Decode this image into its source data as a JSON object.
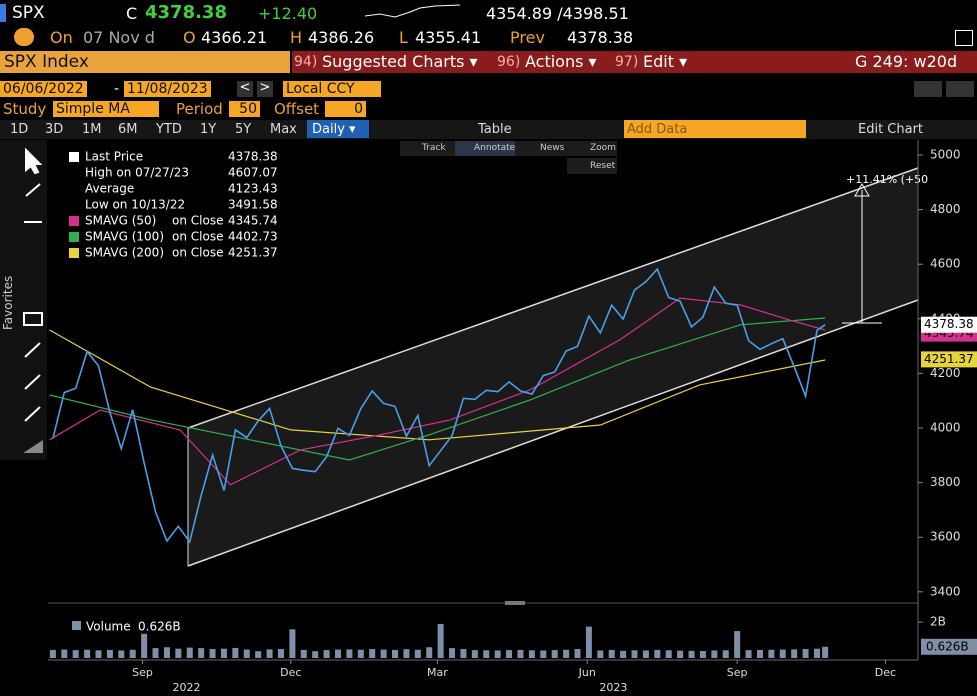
{
  "quote": {
    "ticker": "SPX",
    "close_label": "C",
    "close": "4378.38",
    "change": "+12.40",
    "range": "4354.89 /4398.51",
    "date_label": "On",
    "date": "07 Nov d",
    "open_label": "O",
    "open": "4366.21",
    "high_label": "H",
    "high": "4386.26",
    "low_label": "L",
    "low": "4355.41",
    "prev_label": "Prev",
    "prev": "4378.38"
  },
  "menu": {
    "security": "SPX Index",
    "items": [
      {
        "num": "94)",
        "label": "Suggested Charts ▾"
      },
      {
        "num": "96)",
        "label": "Actions ▾"
      },
      {
        "num": "97)",
        "label": "Edit ▾"
      }
    ],
    "page": "G 249: w20d"
  },
  "settings": {
    "start": "06/06/2022",
    "sep": "-",
    "end": "11/08/2023",
    "currency": "Local CCY",
    "study_label": "Study",
    "study": "Simple MA",
    "period_label": "Period",
    "period": "50",
    "offset_label": "Offset",
    "offset": "0"
  },
  "toolbar": {
    "ranges": [
      "1D",
      "3D",
      "1M",
      "6M",
      "YTD",
      "1Y",
      "5Y",
      "Max"
    ],
    "frequency": "Daily ▾",
    "table": "Table",
    "add_data": "Add Data",
    "edit_chart": "Edit Chart"
  },
  "chart_tools": [
    "Track",
    "Annotate",
    "News",
    "Zoom"
  ],
  "reset": "Reset",
  "favorites": "Favorites",
  "chart_data": {
    "type": "line",
    "stats": [
      {
        "label": "High on 07/27/23",
        "value": 4607.07
      },
      {
        "label": "Average",
        "value": 4123.43
      },
      {
        "label": "Low on 10/13/22",
        "value": 3491.58
      }
    ],
    "annotation": "+11.41% (+50",
    "series": [
      {
        "name": "Last Price",
        "color": "#4a9fe8",
        "last": 4378.38,
        "x": [
          "2022-07-22",
          "2022-07-29",
          "2022-08-05",
          "2022-08-12",
          "2022-08-19",
          "2022-08-26",
          "2022-09-02",
          "2022-09-09",
          "2022-09-16",
          "2022-09-23",
          "2022-09-30",
          "2022-10-07",
          "2022-10-14",
          "2022-10-21",
          "2022-10-28",
          "2022-11-04",
          "2022-11-11",
          "2022-11-18",
          "2022-11-25",
          "2022-12-02",
          "2022-12-09",
          "2022-12-16",
          "2022-12-23",
          "2022-12-30",
          "2023-01-06",
          "2023-01-13",
          "2023-01-20",
          "2023-01-27",
          "2023-02-03",
          "2023-02-10",
          "2023-02-17",
          "2023-02-24",
          "2023-03-03",
          "2023-03-10",
          "2023-03-17",
          "2023-03-24",
          "2023-03-31",
          "2023-04-07",
          "2023-04-14",
          "2023-04-21",
          "2023-04-28",
          "2023-05-05",
          "2023-05-12",
          "2023-05-19",
          "2023-05-26",
          "2023-06-02",
          "2023-06-09",
          "2023-06-16",
          "2023-06-23",
          "2023-06-30",
          "2023-07-07",
          "2023-07-14",
          "2023-07-21",
          "2023-07-28",
          "2023-08-04",
          "2023-08-11",
          "2023-08-18",
          "2023-08-25",
          "2023-09-01",
          "2023-09-08",
          "2023-09-15",
          "2023-09-22",
          "2023-09-29",
          "2023-10-06",
          "2023-10-13",
          "2023-10-20",
          "2023-10-27",
          "2023-11-03",
          "2023-11-08"
        ],
        "values": [
          3962,
          4130,
          4145,
          4280,
          4228,
          4057,
          3924,
          4067,
          3873,
          3693,
          3586,
          3640,
          3583,
          3752,
          3901,
          3771,
          3993,
          3965,
          4026,
          4072,
          3934,
          3852,
          3845,
          3840,
          3895,
          3999,
          3973,
          4071,
          4136,
          4090,
          4079,
          3970,
          4046,
          3862,
          3917,
          3971,
          4109,
          4105,
          4138,
          4133,
          4169,
          4136,
          4124,
          4192,
          4205,
          4282,
          4299,
          4410,
          4348,
          4450,
          4399,
          4505,
          4536,
          4582,
          4478,
          4464,
          4370,
          4406,
          4516,
          4457,
          4450,
          4320,
          4288,
          4309,
          4327,
          4224,
          4117,
          4358,
          4378
        ]
      },
      {
        "name": "SMAVG (50)",
        "field": "on Close",
        "color": "#d6308f",
        "last": 4345.74,
        "x": [
          "2022-07-20",
          "2022-08-20",
          "2022-10-08",
          "2022-11-08",
          "2022-12-21",
          "2023-02-08",
          "2023-03-23",
          "2023-05-11",
          "2023-07-05",
          "2023-08-11",
          "2023-09-17",
          "2023-10-17",
          "2023-11-08"
        ],
        "values": [
          3957,
          4066,
          3993,
          3792,
          3920,
          3975,
          4030,
          4140,
          4323,
          4476,
          4451,
          4396,
          4359
        ]
      },
      {
        "name": "SMAVG (100)",
        "field": "on Close",
        "color": "#30b050",
        "last": 4402.73,
        "x": [
          "2022-07-20",
          "2022-09-20",
          "2022-11-20",
          "2023-01-20",
          "2023-03-10",
          "2023-05-11",
          "2023-07-11",
          "2023-09-17",
          "2023-11-08"
        ],
        "values": [
          4121,
          4030,
          3957,
          3883,
          3975,
          4103,
          4249,
          4378,
          4403
        ]
      },
      {
        "name": "SMAVG (200)",
        "field": "on Close",
        "color": "#e6d43a",
        "last": 4251.37,
        "x": [
          "2022-07-20",
          "2022-09-20",
          "2022-12-15",
          "2023-03-10",
          "2023-06-23",
          "2023-08-23",
          "2023-11-08"
        ],
        "values": [
          4359,
          4150,
          3993,
          3957,
          4011,
          4158,
          4249
        ]
      }
    ],
    "volume": {
      "name": "Volume",
      "color": "#7f8fa8",
      "last": {
        "value": 0.626,
        "label": "0.626B"
      },
      "values": [
        0.45,
        0.47,
        0.44,
        0.46,
        0.43,
        0.45,
        0.42,
        0.46,
        1.35,
        0.55,
        0.6,
        0.52,
        0.58,
        0.55,
        0.5,
        0.52,
        0.56,
        0.47,
        0.38,
        0.48,
        0.5,
        1.6,
        0.45,
        0.38,
        0.44,
        0.47,
        0.48,
        0.46,
        0.5,
        0.47,
        0.45,
        0.49,
        0.46,
        0.6,
        1.9,
        0.55,
        0.5,
        0.44,
        0.43,
        0.42,
        0.44,
        0.45,
        0.43,
        0.42,
        0.44,
        0.46,
        0.5,
        1.75,
        0.42,
        0.45,
        0.4,
        0.43,
        0.42,
        0.45,
        0.43,
        0.41,
        0.4,
        0.39,
        0.42,
        0.43,
        1.5,
        0.44,
        0.45,
        0.46,
        0.47,
        0.48,
        0.5,
        0.52,
        0.626
      ],
      "ylim": [
        0,
        2.9
      ],
      "yticks": [
        {
          "value": 2,
          "label": "2B"
        }
      ]
    },
    "xlim": [
      "2022-07-19",
      "2024-01-04"
    ],
    "xticks": [
      {
        "value": "2022-09-15",
        "label": "Sep"
      },
      {
        "value": "2022-12-15",
        "label": "Dec"
      },
      {
        "value": "2023-03-15",
        "label": "Mar"
      },
      {
        "value": "2023-06-15",
        "label": "Jun"
      },
      {
        "value": "2023-09-15",
        "label": "Sep"
      },
      {
        "value": "2023-12-15",
        "label": "Dec"
      }
    ],
    "years": [
      {
        "value": "2022-10-12",
        "label": "2022"
      },
      {
        "value": "2023-07-01",
        "label": "2023"
      }
    ],
    "ylim": [
      3370,
      5055
    ],
    "yticks": [
      3400,
      3600,
      3800,
      4000,
      4200,
      4400,
      4600,
      4800,
      5000
    ]
  }
}
